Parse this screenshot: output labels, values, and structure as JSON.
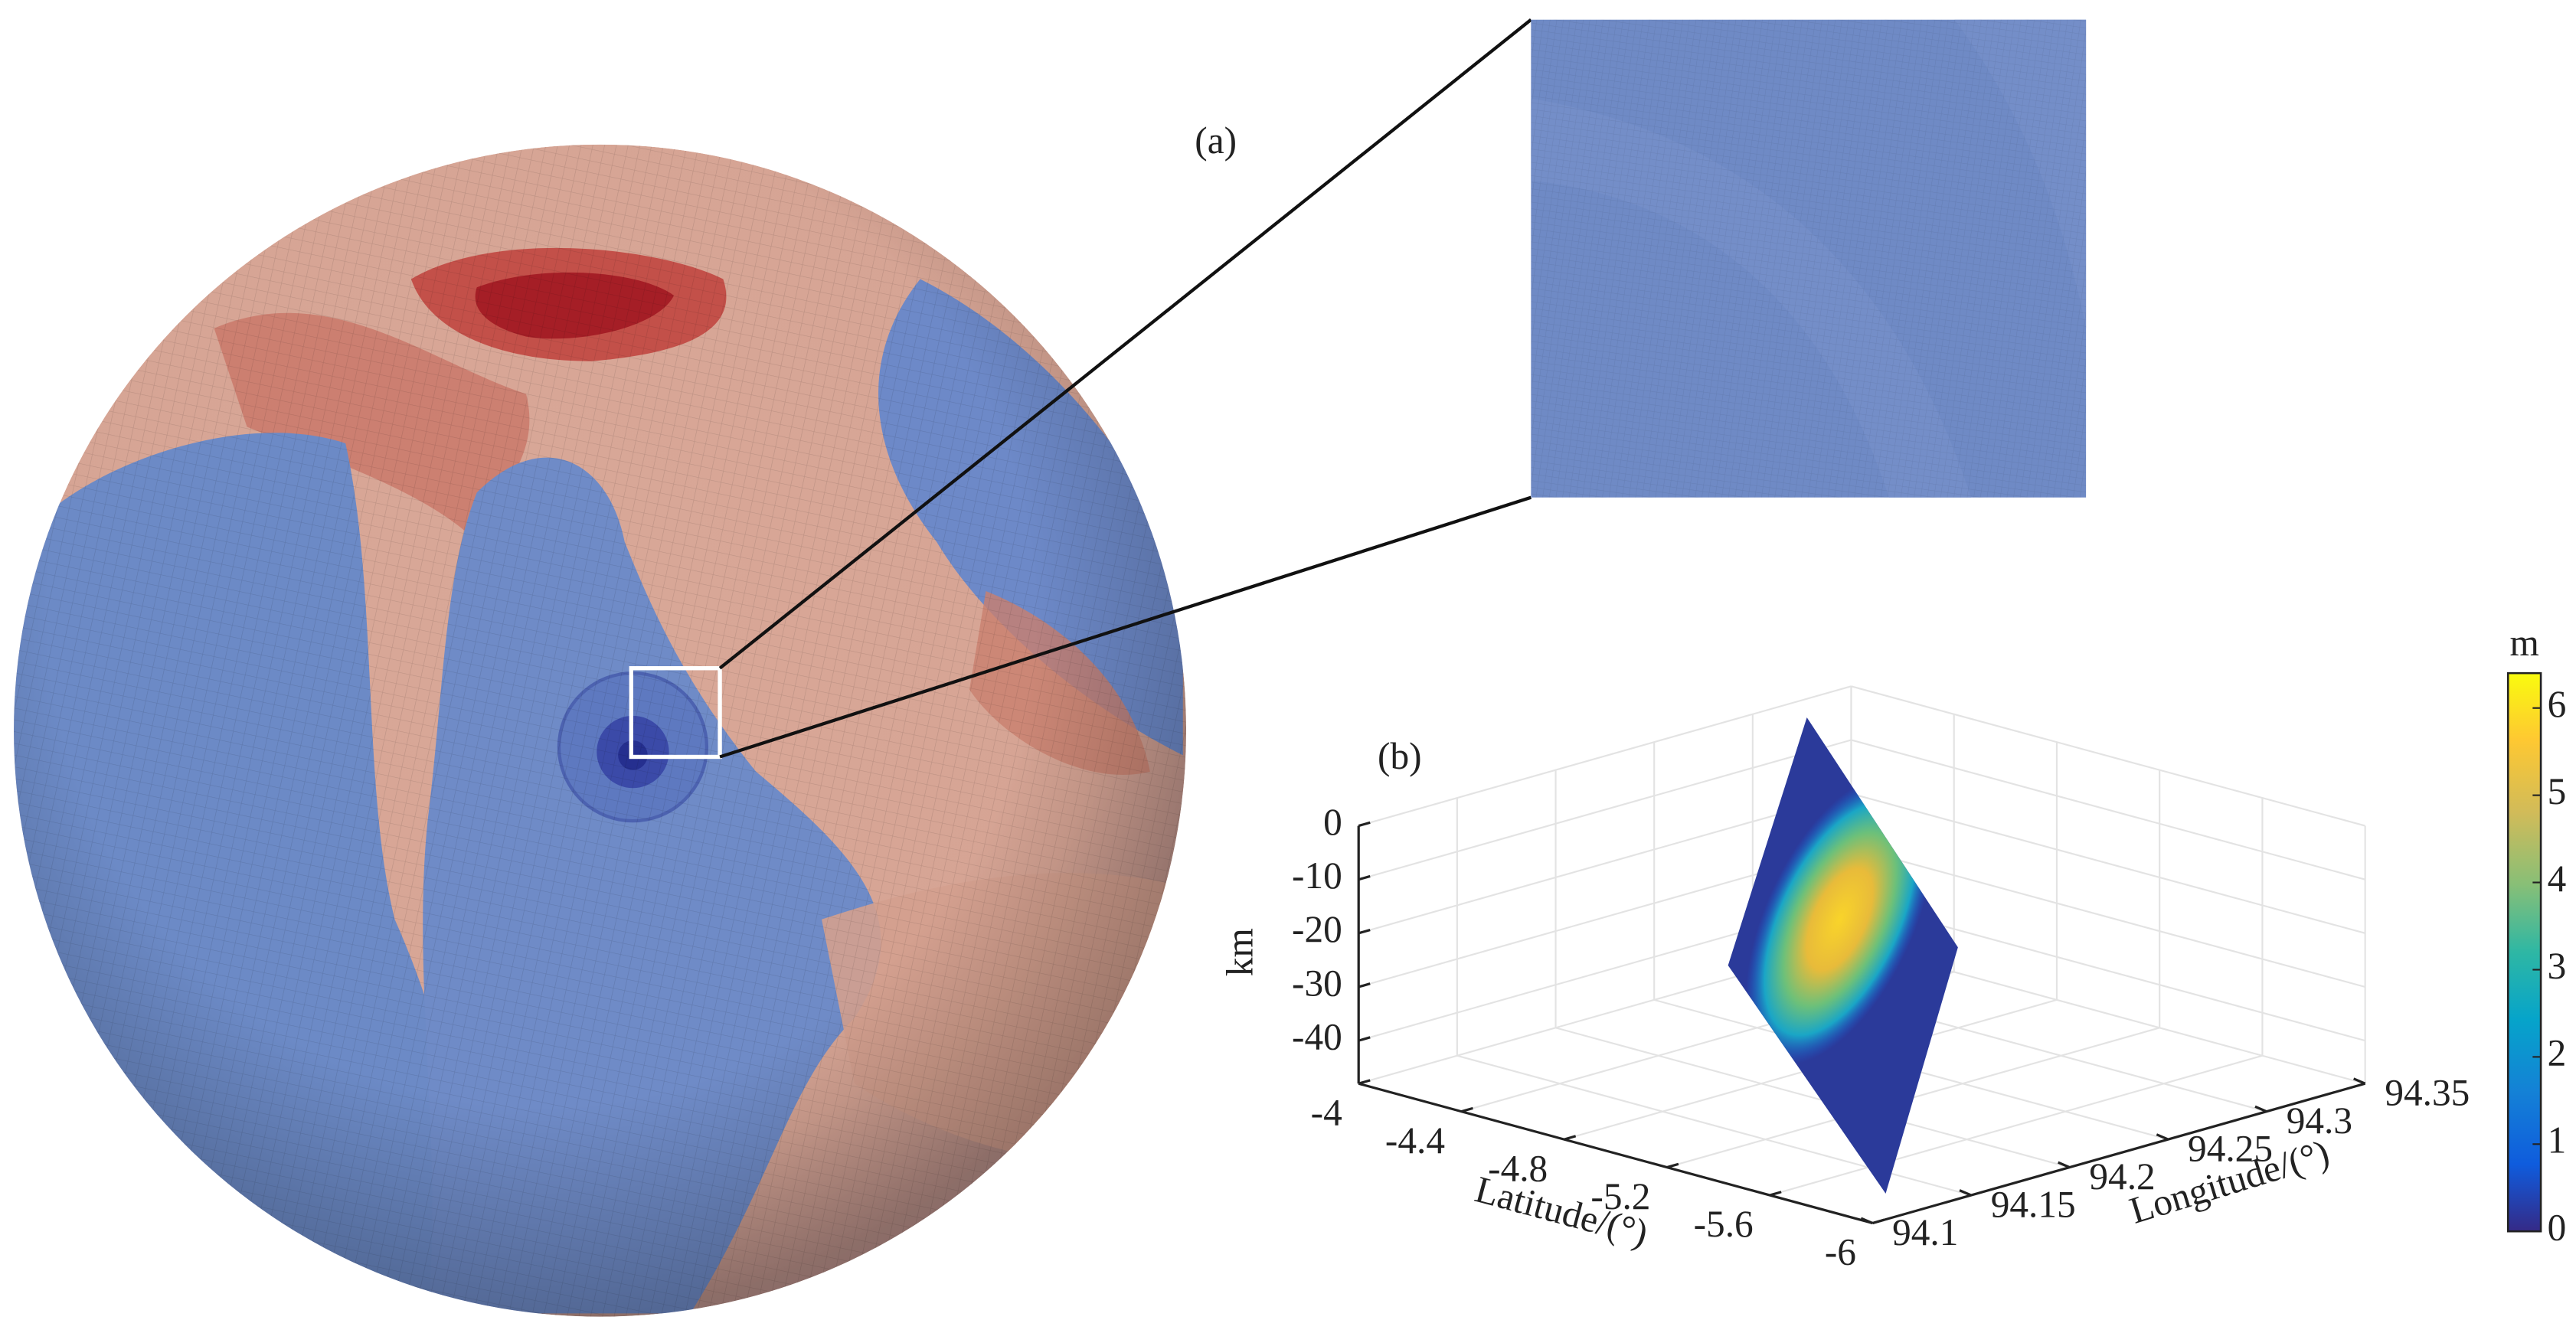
{
  "panel_a": {
    "label": "(a)"
  },
  "chart_data": {
    "type": "surface3d",
    "label": "(b)",
    "zlabel": "km",
    "xlabel": "Latitude/(°)",
    "ylabel": "Longitude/(°)",
    "xlim": [
      -4,
      -6
    ],
    "xticks": [
      -4,
      -4.4,
      -4.8,
      -5.2,
      -5.6,
      -6
    ],
    "ylim": [
      94.1,
      94.35
    ],
    "yticks": [
      94.1,
      94.15,
      94.2,
      94.25,
      94.3,
      94.35
    ],
    "zlim": [
      -48,
      0
    ],
    "zticks": [
      0,
      -10,
      -20,
      -30,
      -40
    ],
    "grid": true,
    "colorbar": {
      "label": "m",
      "lim": [
        0,
        6.4
      ],
      "ticks": [
        0,
        1,
        2,
        3,
        4,
        5,
        6
      ]
    }
  }
}
